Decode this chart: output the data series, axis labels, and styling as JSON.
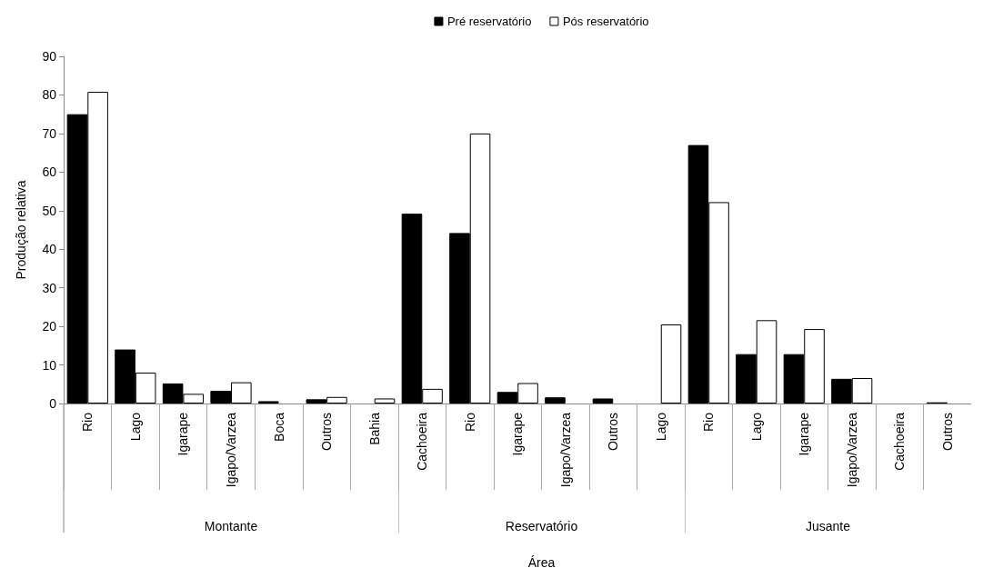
{
  "chart_data": [
    {
      "type": "bar",
      "ylabel": "Produção relativa",
      "xlabel": "Montante",
      "categories": [
        "Rio",
        "Lago",
        "Igarape",
        "Igapo/Varzea",
        "Boca",
        "Outros",
        "Bahia"
      ],
      "series": [
        {
          "color": "#000000",
          "values": [
            75,
            14,
            5.2,
            3.3,
            0.6,
            1.1,
            0
          ]
        },
        {
          "color": "#ffffff",
          "values": [
            80.8,
            8,
            2.5,
            5.5,
            0,
            1.7,
            1.3
          ]
        }
      ],
      "ylim": [
        0,
        90
      ],
      "yticks": [
        0,
        10,
        20,
        30,
        40,
        50,
        60,
        70,
        80,
        90
      ],
      "grid": false
    },
    {
      "type": "bar",
      "xlabel": "Reservatório",
      "annotations": [
        "Área"
      ],
      "legend": "top",
      "categories": [
        "Cachoeira",
        "Rio",
        "Igarape",
        "Igapo/Varzea",
        "Outros",
        "Lago"
      ],
      "series": [
        {
          "name": "Pré reservatório",
          "color": "#000000",
          "values": [
            49.2,
            44.2,
            3,
            1.6,
            1.3,
            0
          ]
        },
        {
          "name": "Pós reservatório",
          "color": "#ffffff",
          "values": [
            3.8,
            70,
            5.3,
            null,
            0,
            20.5
          ]
        }
      ],
      "ylim": [
        0,
        90
      ],
      "yticks": [
        0,
        10,
        20,
        30,
        40,
        50,
        60,
        70,
        80,
        90
      ],
      "tick_labels": "x",
      "grid": false
    },
    {
      "type": "bar",
      "xlabel": "Jusante",
      "categories": [
        "Rio",
        "Lago",
        "Igarape",
        "Igapo/Varzea",
        "Cachoeira",
        "Outros"
      ],
      "series": [
        {
          "color": "#000000",
          "values": [
            67,
            12.8,
            12.8,
            6.4,
            null,
            0.3
          ]
        },
        {
          "color": "#ffffff",
          "values": [
            52.2,
            21.6,
            19.3,
            6.6,
            null,
            null
          ]
        }
      ],
      "ylim": [
        0,
        90
      ],
      "yticks": [
        0,
        10,
        20,
        30,
        40,
        50,
        60,
        70,
        80,
        90
      ],
      "tick_labels": "x",
      "grid": false
    }
  ]
}
